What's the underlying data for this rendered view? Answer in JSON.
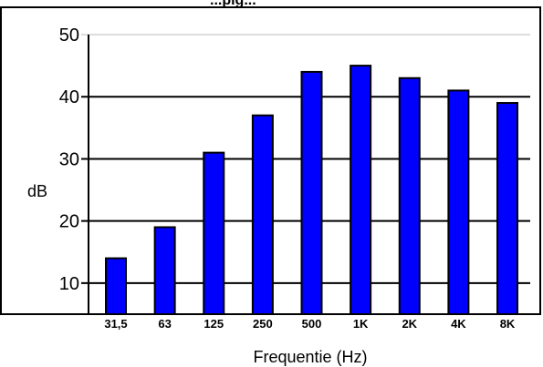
{
  "chart_data": {
    "type": "bar",
    "title_fragment": "...pig...",
    "categories": [
      "31,5",
      "63",
      "125",
      "250",
      "500",
      "1K",
      "2K",
      "4K",
      "8K"
    ],
    "values": [
      14,
      19,
      31,
      37,
      44,
      45,
      43,
      41,
      39
    ],
    "xlabel": "Frequentie (Hz)",
    "ylabel": "dB",
    "ylim": [
      5,
      50
    ],
    "yticks": [
      10,
      20,
      30,
      40,
      50
    ],
    "grid": true,
    "colors": {
      "bar": "#0000ff",
      "bar_edge": "#000000",
      "grid": "#000000",
      "top_grid": "#bbbbbb"
    }
  }
}
